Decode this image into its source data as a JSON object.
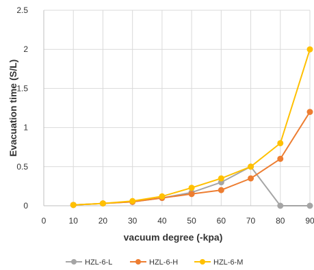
{
  "chart_data": {
    "type": "line",
    "title": "",
    "xlabel": "vacuum degree (-kpa)",
    "ylabel": "Evacuation time (S/L)",
    "x_ticks": [
      "0",
      "10",
      "20",
      "30",
      "40",
      "50",
      "60",
      "70",
      "80",
      "90"
    ],
    "y_ticks": [
      "0",
      "0.5",
      "1",
      "1.5",
      "2",
      "2.5"
    ],
    "xlim": [
      0,
      90
    ],
    "ylim": [
      0,
      2.5
    ],
    "grid": "vertical and horizontal",
    "legend_position": "bottom",
    "x": [
      10,
      20,
      30,
      40,
      50,
      60,
      70,
      80,
      90
    ],
    "series": [
      {
        "name": "HZL-6-L",
        "color": "#a5a5a5",
        "values": [
          0.01,
          0.03,
          0.05,
          0.1,
          0.17,
          0.3,
          0.5,
          0,
          0
        ]
      },
      {
        "name": "HZL-6-H",
        "color": "#ed7d31",
        "values": [
          0.01,
          0.03,
          0.05,
          0.1,
          0.15,
          0.2,
          0.35,
          0.6,
          1.2
        ]
      },
      {
        "name": "HZL-6-M",
        "color": "#ffc000",
        "values": [
          0.01,
          0.03,
          0.06,
          0.12,
          0.23,
          0.35,
          0.5,
          0.8,
          2
        ]
      }
    ]
  }
}
